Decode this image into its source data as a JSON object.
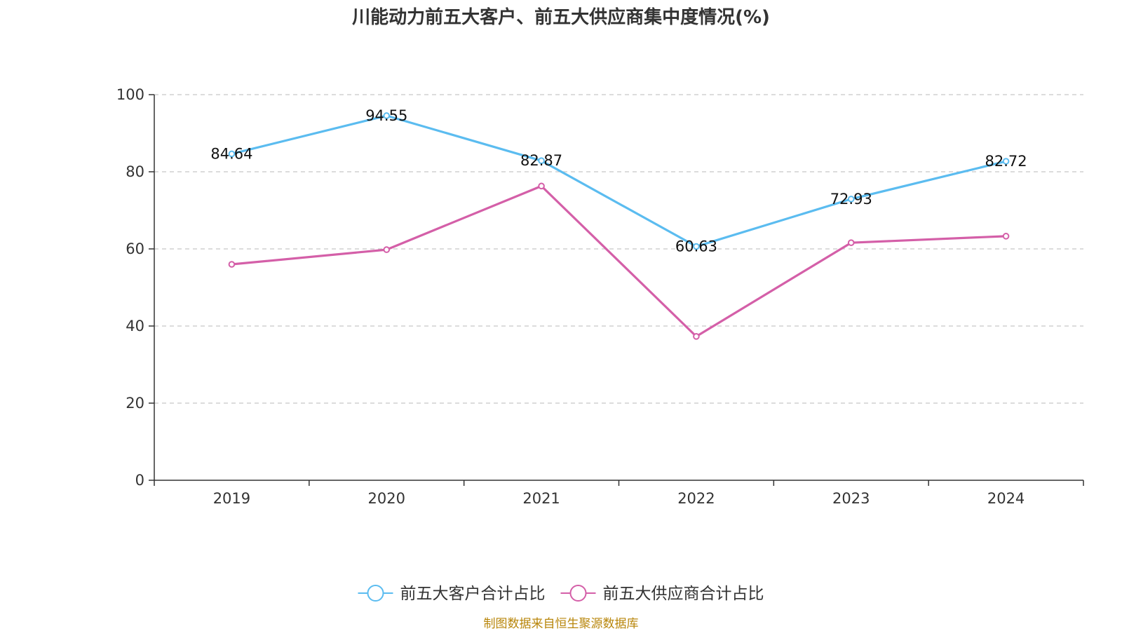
{
  "chart_data": {
    "type": "line",
    "title": "川能动力前五大客户、前五大供应商集中度情况(%)",
    "categories": [
      "2019",
      "2020",
      "2021",
      "2022",
      "2023",
      "2024"
    ],
    "ylim": [
      0,
      100
    ],
    "yticks": [
      0,
      20,
      40,
      60,
      80,
      100
    ],
    "grid": true,
    "legend_position": "bottom-center",
    "series": [
      {
        "name": "前五大客户合计占比",
        "color": "#5bbcf0",
        "values": [
          84.64,
          94.55,
          82.87,
          60.63,
          72.93,
          82.72
        ],
        "show_labels": true,
        "labels": [
          "84.64",
          "94.55",
          "82.87",
          "60.63",
          "72.93",
          "82.72"
        ]
      },
      {
        "name": "前五大供应商合计占比",
        "color": "#d45fa8",
        "values": [
          56.0,
          59.8,
          76.3,
          37.3,
          61.6,
          63.3
        ],
        "show_labels": false
      }
    ]
  },
  "footer": {
    "source": "制图数据来自恒生聚源数据库"
  }
}
